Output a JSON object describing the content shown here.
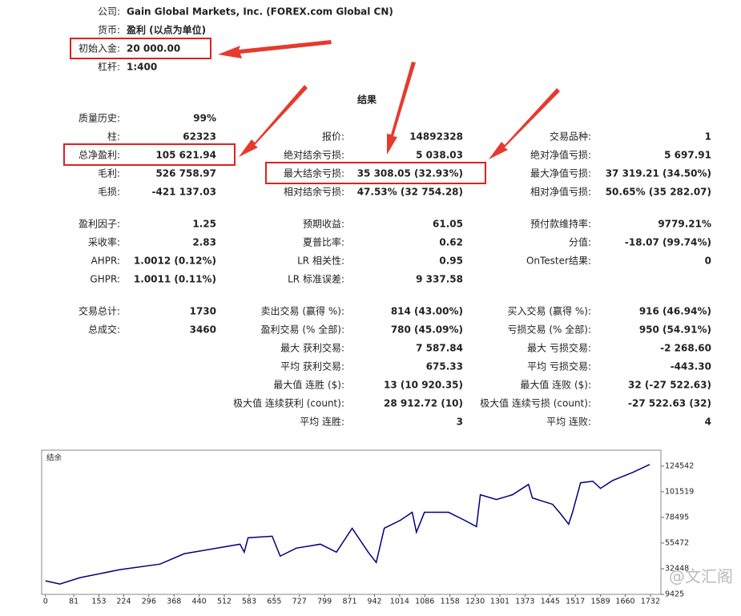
{
  "header": {
    "rows": [
      {
        "label": "公司:",
        "value": "Gain Global Markets, Inc. (FOREX.com Global CN)"
      },
      {
        "label": "货币:",
        "value": "盈利 (以点为单位)"
      },
      {
        "label": "初始入金:",
        "value": "20 000.00"
      },
      {
        "label": "杠杆:",
        "value": "1:400"
      }
    ]
  },
  "results_title": "结果",
  "sections": [
    [
      {
        "left": {
          "label": "质量历史:",
          "value": "99%"
        }
      },
      {
        "left": {
          "label": "柱:",
          "value": "62323"
        },
        "middle": {
          "label": "报价:",
          "value": "14892328"
        },
        "right": {
          "label": "交易品种:",
          "value": "1"
        }
      },
      {
        "left": {
          "label": "总净盈利:",
          "value": "105 621.94"
        },
        "middle": {
          "label": "绝对结余亏损:",
          "value": "5 038.03"
        },
        "right": {
          "label": "绝对净值亏损:",
          "value": "5 697.91"
        }
      },
      {
        "left": {
          "label": "毛利:",
          "value": "526 758.97"
        },
        "middle": {
          "label": "最大结余亏损:",
          "value": "35 308.05 (32.93%)"
        },
        "right": {
          "label": "最大净值亏损:",
          "value": "37 319.21 (34.50%)"
        }
      },
      {
        "left": {
          "label": "毛损:",
          "value": "-421 137.03"
        },
        "middle": {
          "label": "相对结余亏损:",
          "value": "47.53% (32 754.28)"
        },
        "right": {
          "label": "相对净值亏损:",
          "value": "50.65% (35 282.07)"
        }
      }
    ],
    [
      {
        "left": {
          "label": "盈利因子:",
          "value": "1.25"
        },
        "middle": {
          "label": "预期收益:",
          "value": "61.05"
        },
        "right": {
          "label": "预付款维持率:",
          "value": "9779.21%"
        }
      },
      {
        "left": {
          "label": "采收率:",
          "value": "2.83"
        },
        "middle": {
          "label": "夏普比率:",
          "value": "0.62"
        },
        "right": {
          "label": "分值:",
          "value": "-18.07 (99.74%)"
        }
      },
      {
        "left": {
          "label": "AHPR:",
          "value": "1.0012 (0.12%)"
        },
        "middle": {
          "label": "LR 相关性:",
          "value": "0.95"
        },
        "right": {
          "label": "OnTester结果:",
          "value": "0"
        }
      },
      {
        "left": {
          "label": "GHPR:",
          "value": "1.0011 (0.11%)"
        },
        "middle": {
          "label": "LR 标准误差:",
          "value": "9 337.58"
        }
      }
    ],
    [
      {
        "left": {
          "label": "交易总计:",
          "value": "1730"
        },
        "middle": {
          "label": "卖出交易 (赢得 %):",
          "value": "814 (43.00%)"
        },
        "right": {
          "label": "买入交易 (赢得 %):",
          "value": "916 (46.94%)"
        }
      },
      {
        "left": {
          "label": "总成交:",
          "value": "3460"
        },
        "middle": {
          "label": "盈利交易 (% 全部):",
          "value": "780 (45.09%)"
        },
        "right": {
          "label": "亏损交易 (% 全部):",
          "value": "950 (54.91%)"
        }
      },
      {
        "middle": {
          "label": "最大 获利交易:",
          "value": "7 587.84"
        },
        "right": {
          "label": "最大 亏损交易:",
          "value": "-2 268.60"
        }
      },
      {
        "middle": {
          "label": "平均 获利交易:",
          "value": "675.33"
        },
        "right": {
          "label": "平均 亏损交易:",
          "value": "-443.30"
        }
      },
      {
        "middle": {
          "label": "最大值 连胜 ($):",
          "value": "13 (10 920.35)"
        },
        "right": {
          "label": "最大值 连败 ($):",
          "value": "32 (-27 522.63)"
        }
      },
      {
        "middle": {
          "label": "极大值 连续获利 (count):",
          "value": "28 912.72 (10)"
        },
        "right": {
          "label": "极大值 连续亏损 (count):",
          "value": "-27 522.63 (32)"
        }
      },
      {
        "middle": {
          "label": "平均 连胜:",
          "value": "3"
        },
        "right": {
          "label": "平均 连败:",
          "value": "4"
        }
      }
    ]
  ],
  "chart_data": {
    "type": "line",
    "title": "结余",
    "x": [
      0,
      41,
      99,
      213,
      328,
      397,
      557,
      569,
      580,
      649,
      672,
      718,
      787,
      833,
      878,
      924,
      947,
      970,
      1016,
      1050,
      1062,
      1085,
      1154,
      1200,
      1234,
      1245,
      1291,
      1337,
      1383,
      1394,
      1452,
      1475,
      1498,
      1509,
      1532,
      1567,
      1589,
      1624,
      1681,
      1730
    ],
    "series": [
      {
        "name": "结余",
        "color": "#00007f",
        "values": [
          21580,
          18720,
          24440,
          31590,
          36600,
          45890,
          54470,
          47320,
          60190,
          61620,
          43745,
          50900,
          54470,
          47320,
          68770,
          47320,
          38025,
          68770,
          75920,
          83070,
          65200,
          83070,
          83070,
          75920,
          70200,
          98800,
          94510,
          98800,
          108100,
          95940,
          90220,
          81640,
          72345,
          83070,
          109525,
          110955,
          104520,
          111670,
          118820,
          125970
        ]
      }
    ],
    "xlim": [
      -11,
      1762
    ],
    "ylim": [
      9425,
      138800
    ],
    "xticks": [
      0,
      81,
      153,
      224,
      296,
      368,
      440,
      512,
      583,
      655,
      727,
      799,
      871,
      942,
      1014,
      1086,
      1158,
      1230,
      1301,
      1373,
      1445,
      1517,
      1589,
      1660,
      1732
    ],
    "yticks": [
      9425,
      32448,
      55472,
      78495,
      101519,
      124542
    ]
  },
  "watermark": "@文汇阁"
}
